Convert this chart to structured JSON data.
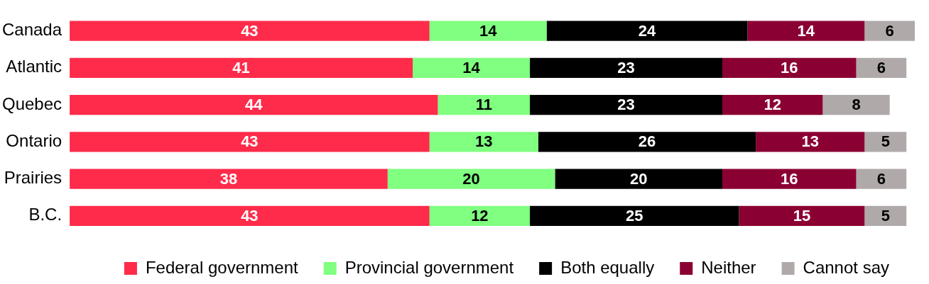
{
  "chart_data": {
    "type": "bar",
    "orientation": "horizontal",
    "stacked": true,
    "data_labels": true,
    "legend": "bottom",
    "categories": [
      "Canada",
      "Atlantic",
      "Quebec",
      "Ontario",
      "Prairies",
      "B.C."
    ],
    "series": [
      {
        "name": "Federal government",
        "color": "#ff2b4a",
        "values": [
          43,
          41,
          44,
          43,
          38,
          43
        ]
      },
      {
        "name": "Provincial government",
        "color": "#80ff80",
        "values": [
          14,
          14,
          11,
          13,
          20,
          12
        ]
      },
      {
        "name": "Both equally",
        "color": "#000000",
        "values": [
          24,
          23,
          23,
          26,
          20,
          25
        ]
      },
      {
        "name": "Neither",
        "color": "#8b0033",
        "values": [
          14,
          16,
          12,
          13,
          16,
          15
        ]
      },
      {
        "name": "Cannot say",
        "color": "#b0a9aa",
        "values": [
          6,
          6,
          8,
          5,
          6,
          5
        ]
      }
    ]
  }
}
